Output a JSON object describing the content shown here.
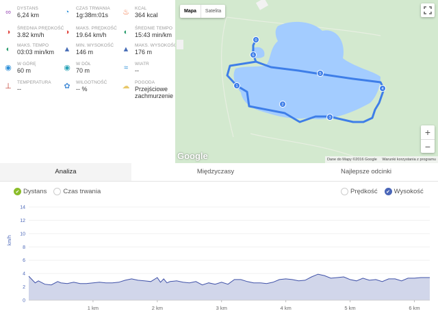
{
  "stats": [
    {
      "label": "DYSTANS",
      "value": "6,24 km",
      "icon": "route-icon",
      "color": "#9c4fb7",
      "glyph": "∞"
    },
    {
      "label": "CZAS TRWANIA",
      "value": "1g:38m:01s",
      "icon": "stopwatch-icon",
      "color": "#2d8fd8",
      "glyph": "◔"
    },
    {
      "label": "KCAL",
      "value": "364 kcal",
      "icon": "flame-icon",
      "color": "#f26a35",
      "glyph": "♨"
    },
    {
      "label": "ŚREDNIA PRĘDKOŚĆ",
      "value": "3.82 km/h",
      "icon": "speedometer-icon",
      "color": "#e0453f",
      "glyph": "◑"
    },
    {
      "label": "MAKS. PRĘDKOŚĆ",
      "value": "19.64 km/h",
      "icon": "speedometer-max-icon",
      "color": "#e0453f",
      "glyph": "◑"
    },
    {
      "label": "ŚREDNIE TEMPO",
      "value": "15:43 min/km",
      "icon": "pace-icon",
      "color": "#2a9d6e",
      "glyph": "◐"
    },
    {
      "label": "MAKS. TEMPO",
      "value": "03:03 min/km",
      "icon": "pace-max-icon",
      "color": "#2a9d6e",
      "glyph": "◐"
    },
    {
      "label": "MIN. WYSOKOŚĆ",
      "value": "146 m",
      "icon": "mountain-min-icon",
      "color": "#4a6fb8",
      "glyph": "▲"
    },
    {
      "label": "MAKS. WYSOKOŚĆ",
      "value": "176 m",
      "icon": "mountain-max-icon",
      "color": "#4a6fb8",
      "glyph": "▲"
    },
    {
      "label": "W GÓRĘ",
      "value": "60 m",
      "icon": "ascent-icon",
      "color": "#2d8fd8",
      "glyph": "◉"
    },
    {
      "label": "W DÓŁ",
      "value": "70 m",
      "icon": "descent-icon",
      "color": "#2aa3b7",
      "glyph": "◉"
    },
    {
      "label": "WIATR",
      "value": "--",
      "icon": "wind-icon",
      "color": "#2d8fd8",
      "glyph": "≈"
    },
    {
      "label": "TEMPERATURA",
      "value": "--",
      "icon": "thermometer-icon",
      "color": "#c0392b",
      "glyph": "⊥"
    },
    {
      "label": "WILGOTNOŚĆ",
      "value": "-- %",
      "icon": "humidity-icon",
      "color": "#4a90d9",
      "glyph": "✿"
    },
    {
      "label": "POGODA",
      "value": "Przejściowe zachmurzenie",
      "icon": "weather-icon",
      "color": "#e8c86a",
      "glyph": "☁"
    }
  ],
  "map": {
    "type_map": "Mapa",
    "type_satellite": "Satelita",
    "zoom_in": "+",
    "zoom_out": "−",
    "logo": "Google",
    "attribution": "Dane do Mapy ©2016 Google",
    "terms": "Warunki korzystania z programu",
    "markers": [
      "0",
      "1",
      "2",
      "3",
      "4",
      "5",
      "6"
    ]
  },
  "tabs": [
    "Analiza",
    "Międzyczasy",
    "Najlepsze odcinki"
  ],
  "legend": {
    "distance": "Dystans",
    "duration": "Czas trwania",
    "speed": "Prędkość",
    "altitude": "Wysokość"
  },
  "chart_data": {
    "type": "area",
    "ylabel": "km/h",
    "ylim": [
      0,
      14
    ],
    "yticks": [
      "0",
      "2",
      "4",
      "6",
      "8",
      "10",
      "12",
      "14"
    ],
    "xticks": [
      "1 km",
      "2 km",
      "3 km",
      "4 km",
      "5 km",
      "6 km"
    ],
    "xlim": [
      0,
      6.24
    ],
    "series": [
      {
        "name": "Prędkość",
        "color": "#3f51a8",
        "x": [
          0,
          0.05,
          0.1,
          0.15,
          0.25,
          0.35,
          0.45,
          0.5,
          0.6,
          0.7,
          0.8,
          0.9,
          1.0,
          1.1,
          1.2,
          1.3,
          1.4,
          1.5,
          1.6,
          1.7,
          1.8,
          1.9,
          2.0,
          2.05,
          2.1,
          2.15,
          2.2,
          2.3,
          2.4,
          2.5,
          2.6,
          2.7,
          2.8,
          2.9,
          3.0,
          3.1,
          3.2,
          3.3,
          3.4,
          3.5,
          3.6,
          3.7,
          3.8,
          3.9,
          4.0,
          4.1,
          4.2,
          4.3,
          4.4,
          4.5,
          4.6,
          4.7,
          4.8,
          4.9,
          5.0,
          5.1,
          5.2,
          5.3,
          5.4,
          5.5,
          5.6,
          5.7,
          5.8,
          5.9,
          6.0,
          6.1,
          6.24
        ],
        "values": [
          3.6,
          3.1,
          2.6,
          2.9,
          2.4,
          2.3,
          2.8,
          2.6,
          2.5,
          2.7,
          2.5,
          2.5,
          2.6,
          2.7,
          2.6,
          2.6,
          2.7,
          3.0,
          3.2,
          3.0,
          2.9,
          2.8,
          3.4,
          2.7,
          3.2,
          2.6,
          2.8,
          2.9,
          2.7,
          2.6,
          2.8,
          2.3,
          2.6,
          2.4,
          2.7,
          2.4,
          3.1,
          3.1,
          2.8,
          2.6,
          2.6,
          2.5,
          2.7,
          3.1,
          3.2,
          3.1,
          2.9,
          3.0,
          3.5,
          3.9,
          3.7,
          3.3,
          3.4,
          3.5,
          3.1,
          2.9,
          3.3,
          3.0,
          3.1,
          2.8,
          3.2,
          3.2,
          2.9,
          3.3,
          3.3,
          3.4,
          3.4
        ]
      }
    ]
  }
}
